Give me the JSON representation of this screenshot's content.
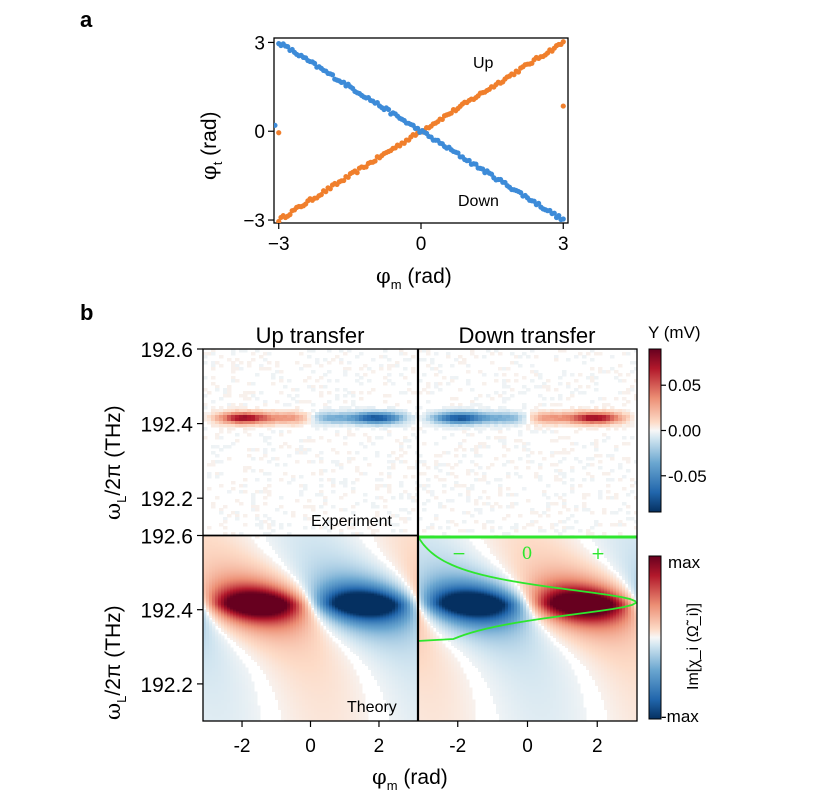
{
  "chart_data": [
    {
      "panel": "a",
      "type": "scatter",
      "xlabel": {
        "symbol": "φ",
        "sub": "m",
        "unit": " (rad)"
      },
      "ylabel": {
        "symbol": "φ",
        "sub": "t",
        "unit": " (rad)"
      },
      "xlim": [
        -3.1,
        3.1
      ],
      "ylim": [
        -3.1,
        3.15
      ],
      "xticks": [
        -3,
        0,
        3
      ],
      "yticks": [
        -3,
        0,
        3
      ],
      "xtick_labels": [
        "−3",
        "0",
        "3"
      ],
      "ytick_labels": [
        "−3",
        "0",
        "3"
      ],
      "series": [
        {
          "name": "Up",
          "color": "#f07f2c",
          "x_range": [
            -3.0,
            3.0
          ],
          "slope": 1.0,
          "n_points": 128,
          "outliers": [
            [
              -3.0,
              -0.05
            ],
            [
              3.0,
              0.85
            ]
          ]
        },
        {
          "name": "Down",
          "color": "#3d8bd8",
          "x_range": [
            -3.0,
            3.0
          ],
          "slope": -1.0,
          "n_points": 128,
          "outliers": [
            [
              -3.08,
              0.2
            ]
          ]
        }
      ],
      "annotations": [
        {
          "text": "Up",
          "x": 1.45,
          "y": 2.2
        },
        {
          "text": "Down",
          "x": 1.05,
          "y": -2.3
        }
      ]
    },
    {
      "panel": "b",
      "type": "heatmap",
      "column_titles": [
        "Up transfer",
        "Down transfer"
      ],
      "row_labels": [
        "Experiment",
        "Theory"
      ],
      "xlabel": {
        "symbol": "φ",
        "sub": "m",
        "unit": " (rad)"
      },
      "ylabel": {
        "symbol": "ω",
        "sub": "L",
        "unit": "/2π (THz)"
      },
      "xlim": [
        -3.14,
        3.14
      ],
      "ylim": [
        192.1,
        192.6
      ],
      "xticks": [
        -2,
        0,
        2
      ],
      "xtick_labels": [
        "-2",
        "0",
        "2"
      ],
      "yticks": [
        192.2,
        192.4,
        192.6
      ],
      "ytick_labels": [
        "192.2",
        "192.4",
        "192.6"
      ],
      "resonance_center_THz": 192.415,
      "experiment_colorbar": {
        "label": "Y (mV)",
        "range": [
          -0.09,
          0.09
        ],
        "ticks": [
          0.05,
          0.0,
          -0.05
        ],
        "tick_labels": [
          "0.05",
          "0.00",
          "-0.05"
        ]
      },
      "theory_colorbar": {
        "label": "Im[χ_i (Ω̃_i)]",
        "tick_labels": [
          "max",
          "-max"
        ]
      },
      "inset": {
        "color": "#2ee62e",
        "labels": [
          "−",
          "0",
          "+"
        ]
      }
    }
  ],
  "panel_labels": [
    "a",
    "b"
  ]
}
